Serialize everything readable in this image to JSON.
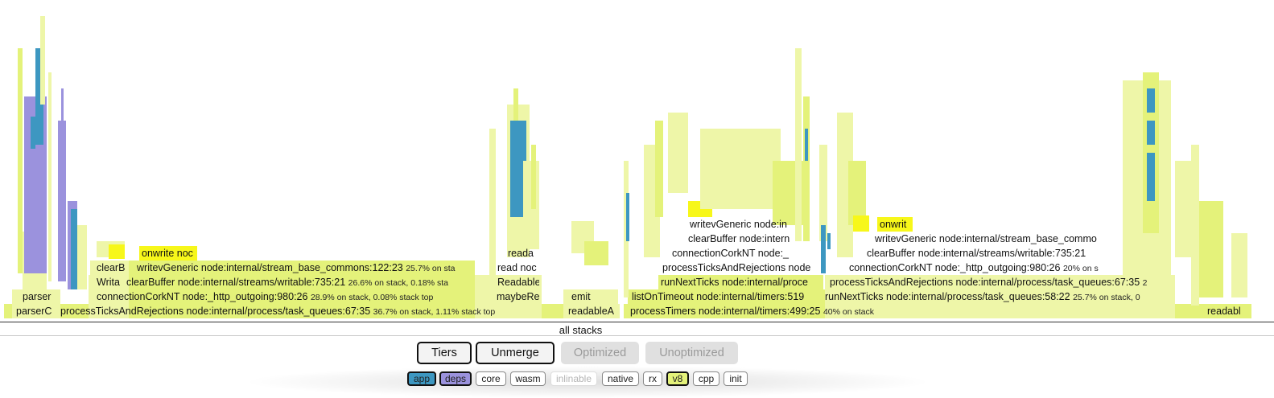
{
  "colors": {
    "v8": "#e4f27a",
    "v8_light": "#eef6a8",
    "v8_hot": "#f7f71a",
    "app": "#3d97c1",
    "deps": "#9b92dd",
    "native": "#d7ea68"
  },
  "flame": {
    "root_label": "all stacks",
    "frames": [
      {
        "id": "f-parser-c",
        "label": "parserC",
        "stats": ""
      },
      {
        "id": "f-process-ticks-1",
        "label": "processTicksAndRejections node:internal/process/task_queues:67:35",
        "stats": "36.7% on stack, 1.11% stack top"
      },
      {
        "id": "f-readable-1",
        "label": "readableA",
        "stats": ""
      },
      {
        "id": "f-process-timers",
        "label": "processTimers node:internal/timers:499:25",
        "stats": "40% on stack"
      },
      {
        "id": "f-readable-2",
        "label": "readabl",
        "stats": ""
      },
      {
        "id": "f-parser",
        "label": "parser",
        "stats": ""
      },
      {
        "id": "f-connection-cork-1",
        "label": "connectionCorkNT node:_http_outgoing:980:26",
        "stats": "28.9% on stack, 0.08% stack top"
      },
      {
        "id": "f-maybe-re",
        "label": "maybeRe",
        "stats": ""
      },
      {
        "id": "f-emit",
        "label": "emit",
        "stats": ""
      },
      {
        "id": "f-list-on-timeout",
        "label": "listOnTimeout node:internal/timers:519",
        "stats": ""
      },
      {
        "id": "f-run-next-ticks-2",
        "label": "runNextTicks node:internal/process/task_queues:58:22",
        "stats": "25.7% on stack, 0"
      },
      {
        "id": "f-writa",
        "label": "Writa",
        "stats": ""
      },
      {
        "id": "f-clear-buffer-1",
        "label": "clearBuffer node:internal/streams/writable:735:21",
        "stats": "26.6% on stack, 0.18% sta"
      },
      {
        "id": "f-readable-3",
        "label": "Readable",
        "stats": ""
      },
      {
        "id": "f-run-next-ticks-1",
        "label": "runNextTicks node:internal/proce",
        "stats": ""
      },
      {
        "id": "f-process-ticks-3",
        "label": "processTicksAndRejections node:internal/process/task_queues:67:35",
        "stats": "2"
      },
      {
        "id": "f-clear-small",
        "label": "clearB",
        "stats": ""
      },
      {
        "id": "f-writev-generic-1",
        "label": "writevGeneric node:internal/stream_base_commons:122:23",
        "stats": "25.7% on sta"
      },
      {
        "id": "f-read-node",
        "label": "read noc",
        "stats": ""
      },
      {
        "id": "f-process-ticks-2",
        "label": "processTicksAndRejections node",
        "stats": ""
      },
      {
        "id": "f-connection-cork-3",
        "label": "connectionCorkNT node:_http_outgoing:980:26",
        "stats": "20% on s"
      },
      {
        "id": "f-onwrite-1",
        "label": "onwrite noc",
        "stats": ""
      },
      {
        "id": "f-reada",
        "label": "reada",
        "stats": ""
      },
      {
        "id": "f-connection-cork-2",
        "label": "connectionCorkNT node:_",
        "stats": ""
      },
      {
        "id": "f-clear-buffer-3",
        "label": "clearBuffer node:internal/streams/writable:735:21",
        "stats": ""
      },
      {
        "id": "f-clear-buffer-2",
        "label": "clearBuffer node:intern",
        "stats": ""
      },
      {
        "id": "f-writev-generic-3",
        "label": "writevGeneric node:internal/stream_base_commo",
        "stats": ""
      },
      {
        "id": "f-writev-generic-2",
        "label": "writevGeneric node:in",
        "stats": ""
      },
      {
        "id": "f-onwrite-2",
        "label": "onwrit",
        "stats": ""
      }
    ]
  },
  "controls": {
    "tiers_label": "Tiers",
    "unmerge_label": "Unmerge",
    "optimized_label": "Optimized",
    "unoptimized_label": "Unoptimized"
  },
  "filters": {
    "app": "app",
    "deps": "deps",
    "core": "core",
    "wasm": "wasm",
    "inlinable": "inlinable",
    "native": "native",
    "rx": "rx",
    "v8": "v8",
    "cpp": "cpp",
    "init": "init"
  }
}
